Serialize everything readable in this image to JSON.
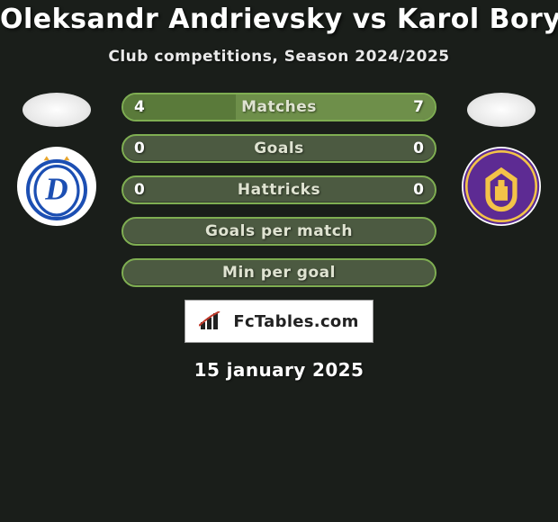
{
  "title": "Oleksandr Andrievsky vs Karol Borys",
  "subtitle": "Club competitions, Season 2024/2025",
  "date": "15 january 2025",
  "brand": {
    "label": "FcTables.com"
  },
  "colors": {
    "pill_bg": "#4c5a41",
    "pill_border": "#7fae52",
    "fill_player1": "#5a7a3a",
    "fill_player2": "#6e8f4a",
    "label_color": "#dfe3d1",
    "accent_yellow": "#e7a630",
    "crest_left_primary": "#1c4fb3",
    "crest_left_accent": "#ffffff",
    "crest_right_primary": "#5d2b93",
    "crest_right_accent": "#f3c348"
  },
  "stats": [
    {
      "label": "Matches",
      "val_left": "4",
      "val_right": "7",
      "left_pct": 36,
      "right_pct": 64,
      "show_left_fill": true,
      "show_right_fill": true
    },
    {
      "label": "Goals",
      "val_left": "0",
      "val_right": "0",
      "left_pct": 0,
      "right_pct": 0,
      "show_left_fill": false,
      "show_right_fill": false
    },
    {
      "label": "Hattricks",
      "val_left": "0",
      "val_right": "0",
      "left_pct": 0,
      "right_pct": 0,
      "show_left_fill": false,
      "show_right_fill": false
    },
    {
      "label": "Goals per match",
      "val_left": "",
      "val_right": "",
      "left_pct": 0,
      "right_pct": 0,
      "show_left_fill": false,
      "show_right_fill": false
    },
    {
      "label": "Min per goal",
      "val_left": "",
      "val_right": "",
      "left_pct": 0,
      "right_pct": 0,
      "show_left_fill": false,
      "show_right_fill": false
    }
  ]
}
